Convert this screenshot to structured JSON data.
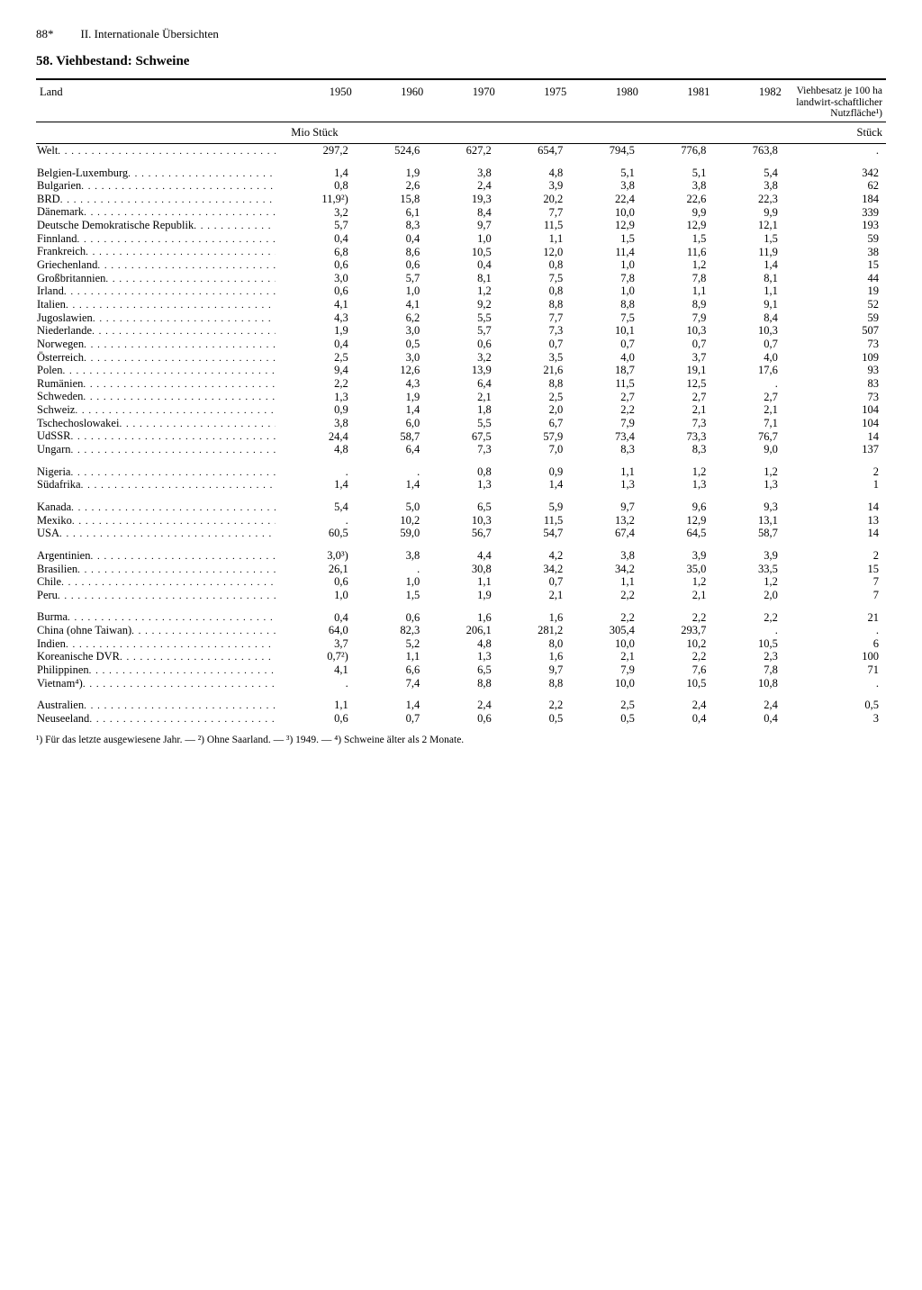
{
  "page_number": "88*",
  "chapter": "II. Internationale Übersichten",
  "title_no": "58.",
  "title": "Viehbestand: Schweine",
  "col_land": "Land",
  "years": [
    "1950",
    "1960",
    "1970",
    "1975",
    "1980",
    "1981",
    "1982"
  ],
  "last_col_header": "Viehbesatz je 100 ha landwirt-schaftlicher Nutzfläche¹)",
  "unit_left": "Mio Stück",
  "unit_right": "Stück",
  "groups": [
    [
      {
        "land": "Welt",
        "v": [
          "297,2",
          "524,6",
          "627,2",
          "654,7",
          "794,5",
          "776,8",
          "763,8",
          "."
        ]
      }
    ],
    [
      {
        "land": "Belgien-Luxemburg",
        "v": [
          "1,4",
          "1,9",
          "3,8",
          "4,8",
          "5,1",
          "5,1",
          "5,4",
          "342"
        ]
      },
      {
        "land": "Bulgarien",
        "v": [
          "0,8",
          "2,6",
          "2,4",
          "3,9",
          "3,8",
          "3,8",
          "3,8",
          "62"
        ]
      },
      {
        "land": "BRD",
        "v": [
          "11,9²)",
          "15,8",
          "19,3",
          "20,2",
          "22,4",
          "22,6",
          "22,3",
          "184"
        ]
      },
      {
        "land": "Dänemark",
        "v": [
          "3,2",
          "6,1",
          "8,4",
          "7,7",
          "10,0",
          "9,9",
          "9,9",
          "339"
        ]
      },
      {
        "land": "Deutsche Demokratische Republik",
        "v": [
          "5,7",
          "8,3",
          "9,7",
          "11,5",
          "12,9",
          "12,9",
          "12,1",
          "193"
        ]
      },
      {
        "land": "Finnland",
        "v": [
          "0,4",
          "0,4",
          "1,0",
          "1,1",
          "1,5",
          "1,5",
          "1,5",
          "59"
        ]
      },
      {
        "land": "Frankreich",
        "v": [
          "6,8",
          "8,6",
          "10,5",
          "12,0",
          "11,4",
          "11,6",
          "11,9",
          "38"
        ]
      },
      {
        "land": "Griechenland",
        "v": [
          "0,6",
          "0,6",
          "0,4",
          "0,8",
          "1,0",
          "1,2",
          "1,4",
          "15"
        ]
      },
      {
        "land": "Großbritannien",
        "v": [
          "3,0",
          "5,7",
          "8,1",
          "7,5",
          "7,8",
          "7,8",
          "8,1",
          "44"
        ]
      },
      {
        "land": "Irland",
        "v": [
          "0,6",
          "1,0",
          "1,2",
          "0,8",
          "1,0",
          "1,1",
          "1,1",
          "19"
        ]
      },
      {
        "land": "Italien",
        "v": [
          "4,1",
          "4,1",
          "9,2",
          "8,8",
          "8,8",
          "8,9",
          "9,1",
          "52"
        ]
      },
      {
        "land": "Jugoslawien",
        "v": [
          "4,3",
          "6,2",
          "5,5",
          "7,7",
          "7,5",
          "7,9",
          "8,4",
          "59"
        ]
      },
      {
        "land": "Niederlande",
        "v": [
          "1,9",
          "3,0",
          "5,7",
          "7,3",
          "10,1",
          "10,3",
          "10,3",
          "507"
        ]
      },
      {
        "land": "Norwegen",
        "v": [
          "0,4",
          "0,5",
          "0,6",
          "0,7",
          "0,7",
          "0,7",
          "0,7",
          "73"
        ]
      },
      {
        "land": "Österreich",
        "v": [
          "2,5",
          "3,0",
          "3,2",
          "3,5",
          "4,0",
          "3,7",
          "4,0",
          "109"
        ]
      },
      {
        "land": "Polen",
        "v": [
          "9,4",
          "12,6",
          "13,9",
          "21,6",
          "18,7",
          "19,1",
          "17,6",
          "93"
        ]
      },
      {
        "land": "Rumänien",
        "v": [
          "2,2",
          "4,3",
          "6,4",
          "8,8",
          "11,5",
          "12,5",
          ".",
          "83"
        ]
      },
      {
        "land": "Schweden",
        "v": [
          "1,3",
          "1,9",
          "2,1",
          "2,5",
          "2,7",
          "2,7",
          "2,7",
          "73"
        ]
      },
      {
        "land": "Schweiz",
        "v": [
          "0,9",
          "1,4",
          "1,8",
          "2,0",
          "2,2",
          "2,1",
          "2,1",
          "104"
        ]
      },
      {
        "land": "Tschechoslowakei",
        "v": [
          "3,8",
          "6,0",
          "5,5",
          "6,7",
          "7,9",
          "7,3",
          "7,1",
          "104"
        ]
      },
      {
        "land": "UdSSR",
        "v": [
          "24,4",
          "58,7",
          "67,5",
          "57,9",
          "73,4",
          "73,3",
          "76,7",
          "14"
        ]
      },
      {
        "land": "Ungarn",
        "v": [
          "4,8",
          "6,4",
          "7,3",
          "7,0",
          "8,3",
          "8,3",
          "9,0",
          "137"
        ]
      }
    ],
    [
      {
        "land": "Nigeria",
        "v": [
          ".",
          ".",
          "0,8",
          "0,9",
          "1,1",
          "1,2",
          "1,2",
          "2"
        ]
      },
      {
        "land": "Südafrika",
        "v": [
          "1,4",
          "1,4",
          "1,3",
          "1,4",
          "1,3",
          "1,3",
          "1,3",
          "1"
        ]
      }
    ],
    [
      {
        "land": "Kanada",
        "v": [
          "5,4",
          "5,0",
          "6,5",
          "5,9",
          "9,7",
          "9,6",
          "9,3",
          "14"
        ]
      },
      {
        "land": "Mexiko",
        "v": [
          ".",
          "10,2",
          "10,3",
          "11,5",
          "13,2",
          "12,9",
          "13,1",
          "13"
        ]
      },
      {
        "land": "USA",
        "v": [
          "60,5",
          "59,0",
          "56,7",
          "54,7",
          "67,4",
          "64,5",
          "58,7",
          "14"
        ]
      }
    ],
    [
      {
        "land": "Argentinien",
        "v": [
          "3,0³)",
          "3,8",
          "4,4",
          "4,2",
          "3,8",
          "3,9",
          "3,9",
          "2"
        ]
      },
      {
        "land": "Brasilien",
        "v": [
          "26,1",
          ".",
          "30,8",
          "34,2",
          "34,2",
          "35,0",
          "33,5",
          "15"
        ]
      },
      {
        "land": "Chile",
        "v": [
          "0,6",
          "1,0",
          "1,1",
          "0,7",
          "1,1",
          "1,2",
          "1,2",
          "7"
        ]
      },
      {
        "land": "Peru",
        "v": [
          "1,0",
          "1,5",
          "1,9",
          "2,1",
          "2,2",
          "2,1",
          "2,0",
          "7"
        ]
      }
    ],
    [
      {
        "land": "Burma",
        "v": [
          "0,4",
          "0,6",
          "1,6",
          "1,6",
          "2,2",
          "2,2",
          "2,2",
          "21"
        ]
      },
      {
        "land": "China (ohne Taiwan)",
        "v": [
          "64,0",
          "82,3",
          "206,1",
          "281,2",
          "305,4",
          "293,7",
          ".",
          "."
        ]
      },
      {
        "land": "Indien",
        "v": [
          "3,7",
          "5,2",
          "4,8",
          "8,0",
          "10,0",
          "10,2",
          "10,5",
          "6"
        ]
      },
      {
        "land": "Koreanische DVR",
        "v": [
          "0,7²)",
          "1,1",
          "1,3",
          "1,6",
          "2,1",
          "2,2",
          "2,3",
          "100"
        ]
      },
      {
        "land": "Philippinen",
        "v": [
          "4,1",
          "6,6",
          "6,5",
          "9,7",
          "7,9",
          "7,6",
          "7,8",
          "71"
        ]
      },
      {
        "land": "Vietnam⁴)",
        "v": [
          ".",
          "7,4",
          "8,8",
          "8,8",
          "10,0",
          "10,5",
          "10,8",
          "."
        ]
      }
    ],
    [
      {
        "land": "Australien",
        "v": [
          "1,1",
          "1,4",
          "2,4",
          "2,2",
          "2,5",
          "2,4",
          "2,4",
          "0,5"
        ]
      },
      {
        "land": "Neuseeland",
        "v": [
          "0,6",
          "0,7",
          "0,6",
          "0,5",
          "0,5",
          "0,4",
          "0,4",
          "3"
        ]
      }
    ]
  ],
  "footnotes": "¹) Für das letzte ausgewiesene Jahr. — ²) Ohne Saarland. — ³) 1949. — ⁴) Schweine älter als 2 Monate."
}
